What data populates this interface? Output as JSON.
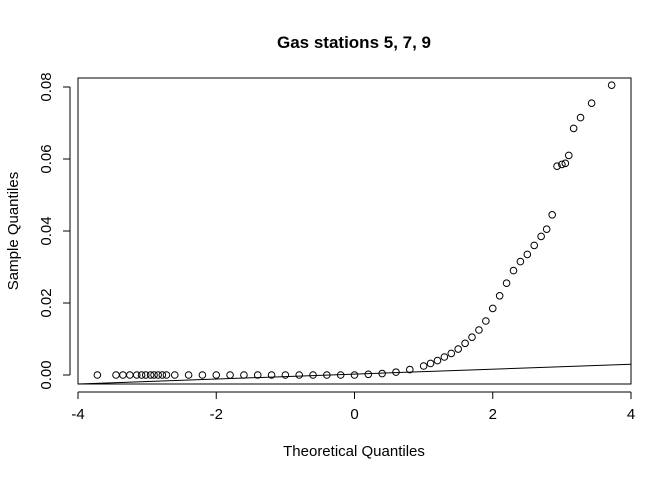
{
  "chart_data": {
    "type": "scatter",
    "title": "Gas stations 5, 7, 9",
    "xlabel": "Theoretical Quantiles",
    "ylabel": "Sample Quantiles",
    "xlim": [
      -4,
      4
    ],
    "ylim": [
      -0.0025,
      0.0825
    ],
    "x_ticks": [
      -4,
      -2,
      0,
      2,
      4
    ],
    "x_tick_labels": [
      "-4",
      "-2",
      "0",
      "2",
      "4"
    ],
    "y_ticks": [
      0,
      0.02,
      0.04,
      0.06,
      0.08
    ],
    "y_tick_labels": [
      "0.00",
      "0.02",
      "0.04",
      "0.06",
      "0.08"
    ],
    "grid": false,
    "point_style": "open-circle",
    "reference_line": {
      "x": [
        -4,
        4
      ],
      "y": [
        -0.0025,
        0.003
      ]
    },
    "points": [
      [
        -3.72,
        0.0
      ],
      [
        -3.45,
        0.0
      ],
      [
        -3.35,
        0.0
      ],
      [
        -3.25,
        0.0
      ],
      [
        -3.15,
        0.0
      ],
      [
        -3.08,
        0.0
      ],
      [
        -3.02,
        0.0
      ],
      [
        -2.95,
        0.0
      ],
      [
        -2.9,
        0.0
      ],
      [
        -2.84,
        0.0
      ],
      [
        -2.78,
        0.0
      ],
      [
        -2.72,
        0.0
      ],
      [
        -2.6,
        0.0
      ],
      [
        -2.4,
        0.0
      ],
      [
        -2.2,
        0.0
      ],
      [
        -2.0,
        0.0
      ],
      [
        -1.8,
        0.0
      ],
      [
        -1.6,
        0.0
      ],
      [
        -1.4,
        0.0
      ],
      [
        -1.2,
        0.0
      ],
      [
        -1.0,
        0.0
      ],
      [
        -0.8,
        0.0
      ],
      [
        -0.6,
        0.0
      ],
      [
        -0.4,
        0.0
      ],
      [
        -0.2,
        0.0
      ],
      [
        0.0,
        0.0
      ],
      [
        0.2,
        0.0002
      ],
      [
        0.4,
        0.0004
      ],
      [
        0.6,
        0.0008
      ],
      [
        0.8,
        0.0015
      ],
      [
        1.0,
        0.0025
      ],
      [
        1.1,
        0.0032
      ],
      [
        1.2,
        0.004
      ],
      [
        1.3,
        0.005
      ],
      [
        1.4,
        0.006
      ],
      [
        1.5,
        0.0072
      ],
      [
        1.6,
        0.0088
      ],
      [
        1.7,
        0.0105
      ],
      [
        1.8,
        0.0125
      ],
      [
        1.9,
        0.015
      ],
      [
        2.0,
        0.0185
      ],
      [
        2.1,
        0.022
      ],
      [
        2.2,
        0.0255
      ],
      [
        2.3,
        0.029
      ],
      [
        2.4,
        0.0315
      ],
      [
        2.5,
        0.0335
      ],
      [
        2.6,
        0.036
      ],
      [
        2.7,
        0.0385
      ],
      [
        2.78,
        0.0405
      ],
      [
        2.86,
        0.0445
      ],
      [
        2.93,
        0.058
      ],
      [
        3.0,
        0.0585
      ],
      [
        3.05,
        0.0588
      ],
      [
        3.1,
        0.061
      ],
      [
        3.17,
        0.0685
      ],
      [
        3.27,
        0.0715
      ],
      [
        3.43,
        0.0755
      ],
      [
        3.72,
        0.0805
      ]
    ]
  }
}
